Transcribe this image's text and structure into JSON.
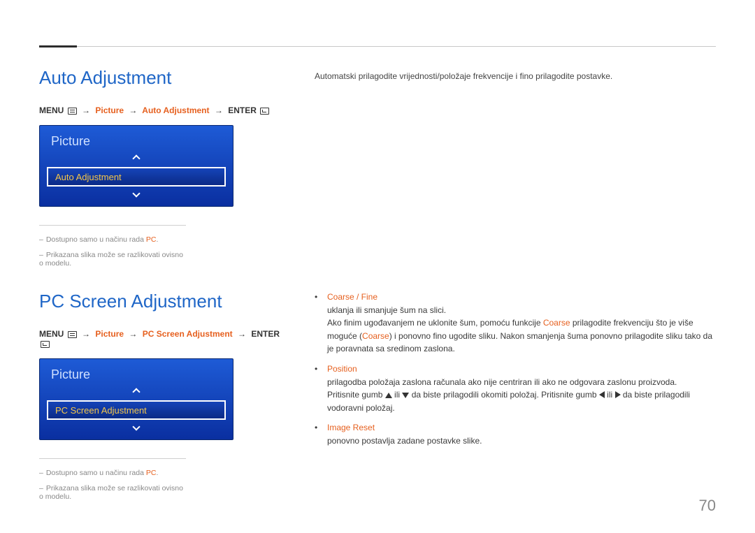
{
  "page_number": "70",
  "colors": {
    "heading": "#1f66c7",
    "accent": "#e6601f",
    "menu_grad_top": "#1e5bd6",
    "menu_grad_bottom": "#0a2fa0",
    "menu_selected_text": "#f4c64a",
    "footnote": "#888888"
  },
  "section1": {
    "heading": "Auto Adjustment",
    "breadcrumb": {
      "pre": "MENU",
      "mid1": "Picture",
      "mid2": "Auto Adjustment",
      "post": "ENTER"
    },
    "menu": {
      "title": "Picture",
      "selected": "Auto Adjustment"
    },
    "footnotes": [
      {
        "text": "Dostupno samo u načinu rada ",
        "accent": "PC",
        "tail": "."
      },
      {
        "text": "Prikazana slika može se razlikovati ovisno o modelu."
      }
    ],
    "body": "Automatski prilagodite vrijednosti/položaje frekvencije i fino prilagodite postavke."
  },
  "section2": {
    "heading": "PC Screen Adjustment",
    "breadcrumb": {
      "pre": "MENU",
      "mid1": "Picture",
      "mid2": "PC Screen Adjustment",
      "post": "ENTER"
    },
    "menu": {
      "title": "Picture",
      "selected": "PC Screen Adjustment"
    },
    "footnotes": [
      {
        "text": "Dostupno samo u načinu rada ",
        "accent": "PC",
        "tail": "."
      },
      {
        "text": "Prikazana slika može se razlikovati ovisno o modelu."
      }
    ],
    "bullets": {
      "coarse": {
        "label": "Coarse / Fine",
        "line1": "uklanja ili smanjuje šum na slici.",
        "line2a": "Ako finim ugođavanjem ne uklonite šum, pomoću funkcije ",
        "line2accent1": "Coarse",
        "line2b": " prilagodite frekvenciju što je više moguće (",
        "line2accent2": "Coarse",
        "line2c": ") i ponovno fino ugodite sliku. Nakon smanjenja šuma ponovno prilagodite sliku tako da je poravnata sa sredinom zaslona."
      },
      "position": {
        "label": "Position",
        "line1": "prilagodba položaja zaslona računala ako nije centriran ili ako ne odgovara zaslonu proizvoda.",
        "line2a": "Pritisnite gumb ",
        "line2b": " ili ",
        "line2c": " da biste prilagodili okomiti položaj. Pritisnite gumb ",
        "line2d": " ili ",
        "line2e": " da biste prilagodili vodoravni položaj."
      },
      "image_reset": {
        "label": "Image Reset",
        "line1": "ponovno postavlja zadane postavke slike."
      }
    }
  }
}
